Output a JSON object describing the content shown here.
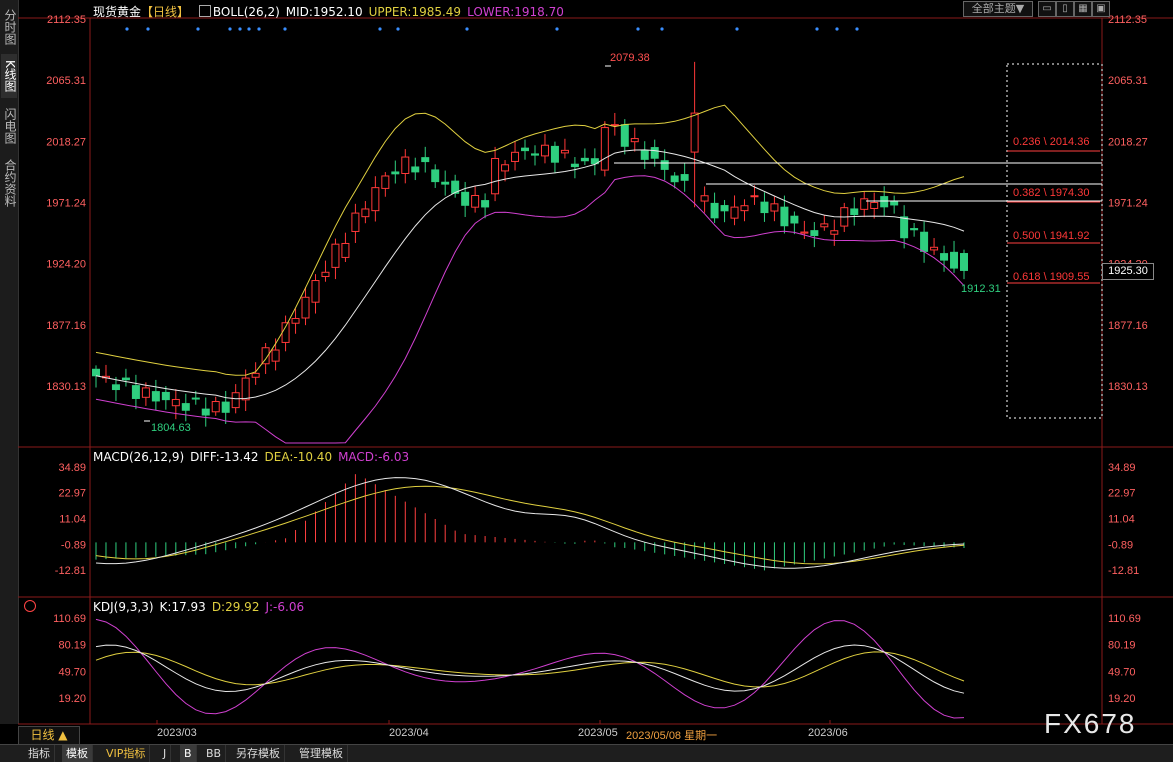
{
  "app": {
    "instrument": "现货黄金",
    "period_tag": "【日线】",
    "period_button": "日线 ▲",
    "theme_button": "全部主题▼",
    "watermark": "FX678"
  },
  "left_tabs": [
    {
      "label": "分时图",
      "active": false
    },
    {
      "label": "K线图",
      "active": true
    },
    {
      "label": "闪电图",
      "active": false
    },
    {
      "label": "合约资料",
      "active": false
    }
  ],
  "window_buttons": [
    {
      "icon": "minimize-icon",
      "glyph": "▭"
    },
    {
      "icon": "restore-icon",
      "glyph": "▯"
    },
    {
      "icon": "grid-icon",
      "glyph": "▦"
    },
    {
      "icon": "close-icon",
      "glyph": "▣"
    }
  ],
  "boll": {
    "label": "BOLL(26,2)",
    "mid": "MID:1952.10",
    "upper": "UPPER:1985.49",
    "lower": "LOWER:1918.70"
  },
  "macd": {
    "label": "MACD(26,12,9)",
    "diff": "DIFF:-13.42",
    "dea": "DEA:-10.40",
    "macd": "MACD:-6.03"
  },
  "kdj": {
    "label": "KDJ(9,3,3)",
    "k": "K:17.93",
    "d": "D:29.92",
    "j": "J:-6.06"
  },
  "axes": {
    "main_left": [
      "2112.35",
      "2065.31",
      "2018.27",
      "1971.24",
      "1924.20",
      "1877.16",
      "1830.13"
    ],
    "main_right": [
      "2112.35",
      "2065.31",
      "2018.27",
      "1971.24",
      "1924.20",
      "1877.16",
      "1830.13"
    ],
    "macd_ticks": [
      "34.89",
      "22.97",
      "11.04",
      "-0.89",
      "-12.81"
    ],
    "kdj_ticks": [
      "110.69",
      "80.19",
      "49.70",
      "19.20"
    ],
    "dates": [
      "2023/03",
      "2023/04",
      "2023/05",
      "2023/06"
    ],
    "cursor_date": "2023/05/08 星期一"
  },
  "annotations": {
    "high": "2079.38",
    "low": "1804.63",
    "last_low": "1912.31",
    "current_price": "1925.30"
  },
  "fib_levels": [
    {
      "label": "0.236 \\ 2014.36"
    },
    {
      "label": "0.382 \\ 1974.30"
    },
    {
      "label": "0.500 \\ 1941.92"
    },
    {
      "label": "0.618 \\ 1909.55"
    }
  ],
  "bottom_tabs": [
    {
      "label": "指标",
      "active": false
    },
    {
      "label": "模板",
      "active": true
    },
    {
      "label": "VIP指标",
      "active": false
    },
    {
      "label": "J",
      "active": false
    },
    {
      "label": "B",
      "active": true
    },
    {
      "label": "BB",
      "active": false
    },
    {
      "label": "另存模板",
      "active": false
    },
    {
      "label": "管理模板",
      "active": false
    }
  ],
  "colors": {
    "up": "#ff3838",
    "down": "#2fcf7f",
    "upper_band": "#e0d040",
    "lower_band": "#d040d0",
    "mid_band": "#e8e8e8",
    "fib_text": "#ff3838",
    "axis_text": "#ff6060"
  }
}
